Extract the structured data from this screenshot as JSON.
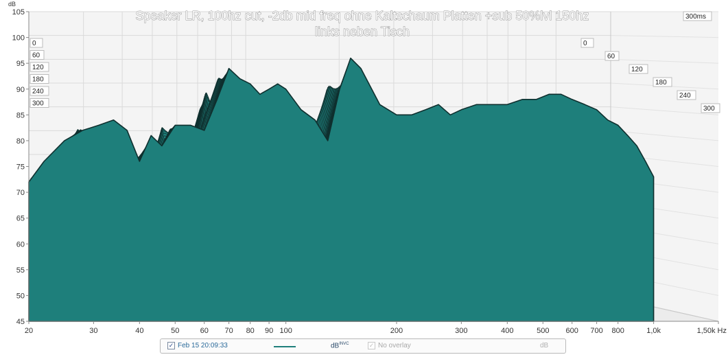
{
  "chart_data": {
    "type": "waterfall",
    "title": "Speaker LR, 100hz cut, -2db mid freq ohne Kaltschaum Platten +sub 50%lvl 150hz",
    "subtitle": "links neben Tisch",
    "ylabel": "dB",
    "xlabel": "Hz",
    "y_ticks": [
      "105",
      "100",
      "95",
      "90",
      "85",
      "80",
      "75",
      "70",
      "65",
      "60",
      "55",
      "50",
      "45"
    ],
    "ylim": [
      45,
      105
    ],
    "x_ticks": [
      "20",
      "30",
      "40",
      "50",
      "60",
      "70",
      "80",
      "90",
      "100",
      "200",
      "300",
      "400",
      "500",
      "600",
      "700",
      "800",
      "1,0k",
      "1,50k Hz"
    ],
    "x_tick_values": [
      20,
      30,
      40,
      50,
      60,
      70,
      80,
      90,
      100,
      200,
      300,
      400,
      500,
      600,
      700,
      800,
      1000,
      1500
    ],
    "xscale": "log",
    "xlim": [
      20,
      1500
    ],
    "time_labels_left": [
      "0",
      "60",
      "120",
      "180",
      "240",
      "300"
    ],
    "time_labels_right": [
      "0",
      "60",
      "120",
      "180",
      "240",
      "300"
    ],
    "time_range_label": "300ms",
    "time_ms": [
      0,
      300
    ],
    "slice_count": 60,
    "color": "#1e7f7b",
    "grid": true,
    "series": [
      {
        "frequency_hz": [
          20,
          22,
          25,
          28,
          31,
          34,
          37,
          40,
          43,
          46,
          50,
          55,
          60,
          65,
          70,
          75,
          80,
          85,
          90,
          95,
          100,
          110,
          120,
          130,
          140,
          150,
          160,
          180,
          200,
          220,
          240,
          260,
          280,
          300,
          330,
          360,
          400,
          440,
          480,
          520,
          560,
          600,
          650,
          700,
          750,
          800,
          850,
          900,
          950,
          1000
        ],
        "level_db_at_0ms": [
          72,
          76,
          80,
          82,
          83,
          84,
          82,
          76,
          81,
          79,
          83,
          83,
          82,
          88,
          94,
          92,
          91,
          89,
          90,
          91,
          90,
          86,
          84,
          80,
          90,
          96,
          94,
          87,
          85,
          85,
          86,
          87,
          85,
          86,
          87,
          87,
          87,
          88,
          88,
          89,
          89,
          88,
          87,
          86,
          84,
          83,
          81,
          79,
          76,
          73
        ]
      }
    ]
  },
  "legend": {
    "measurement_label": "Feb 15 20:09:33",
    "checked_mark": "✓",
    "line_color": "#1e7f7b",
    "unit_label": "dB",
    "unit_sup": "INVC",
    "overlay_label": "No overlay",
    "overlay_unit": "dB"
  }
}
